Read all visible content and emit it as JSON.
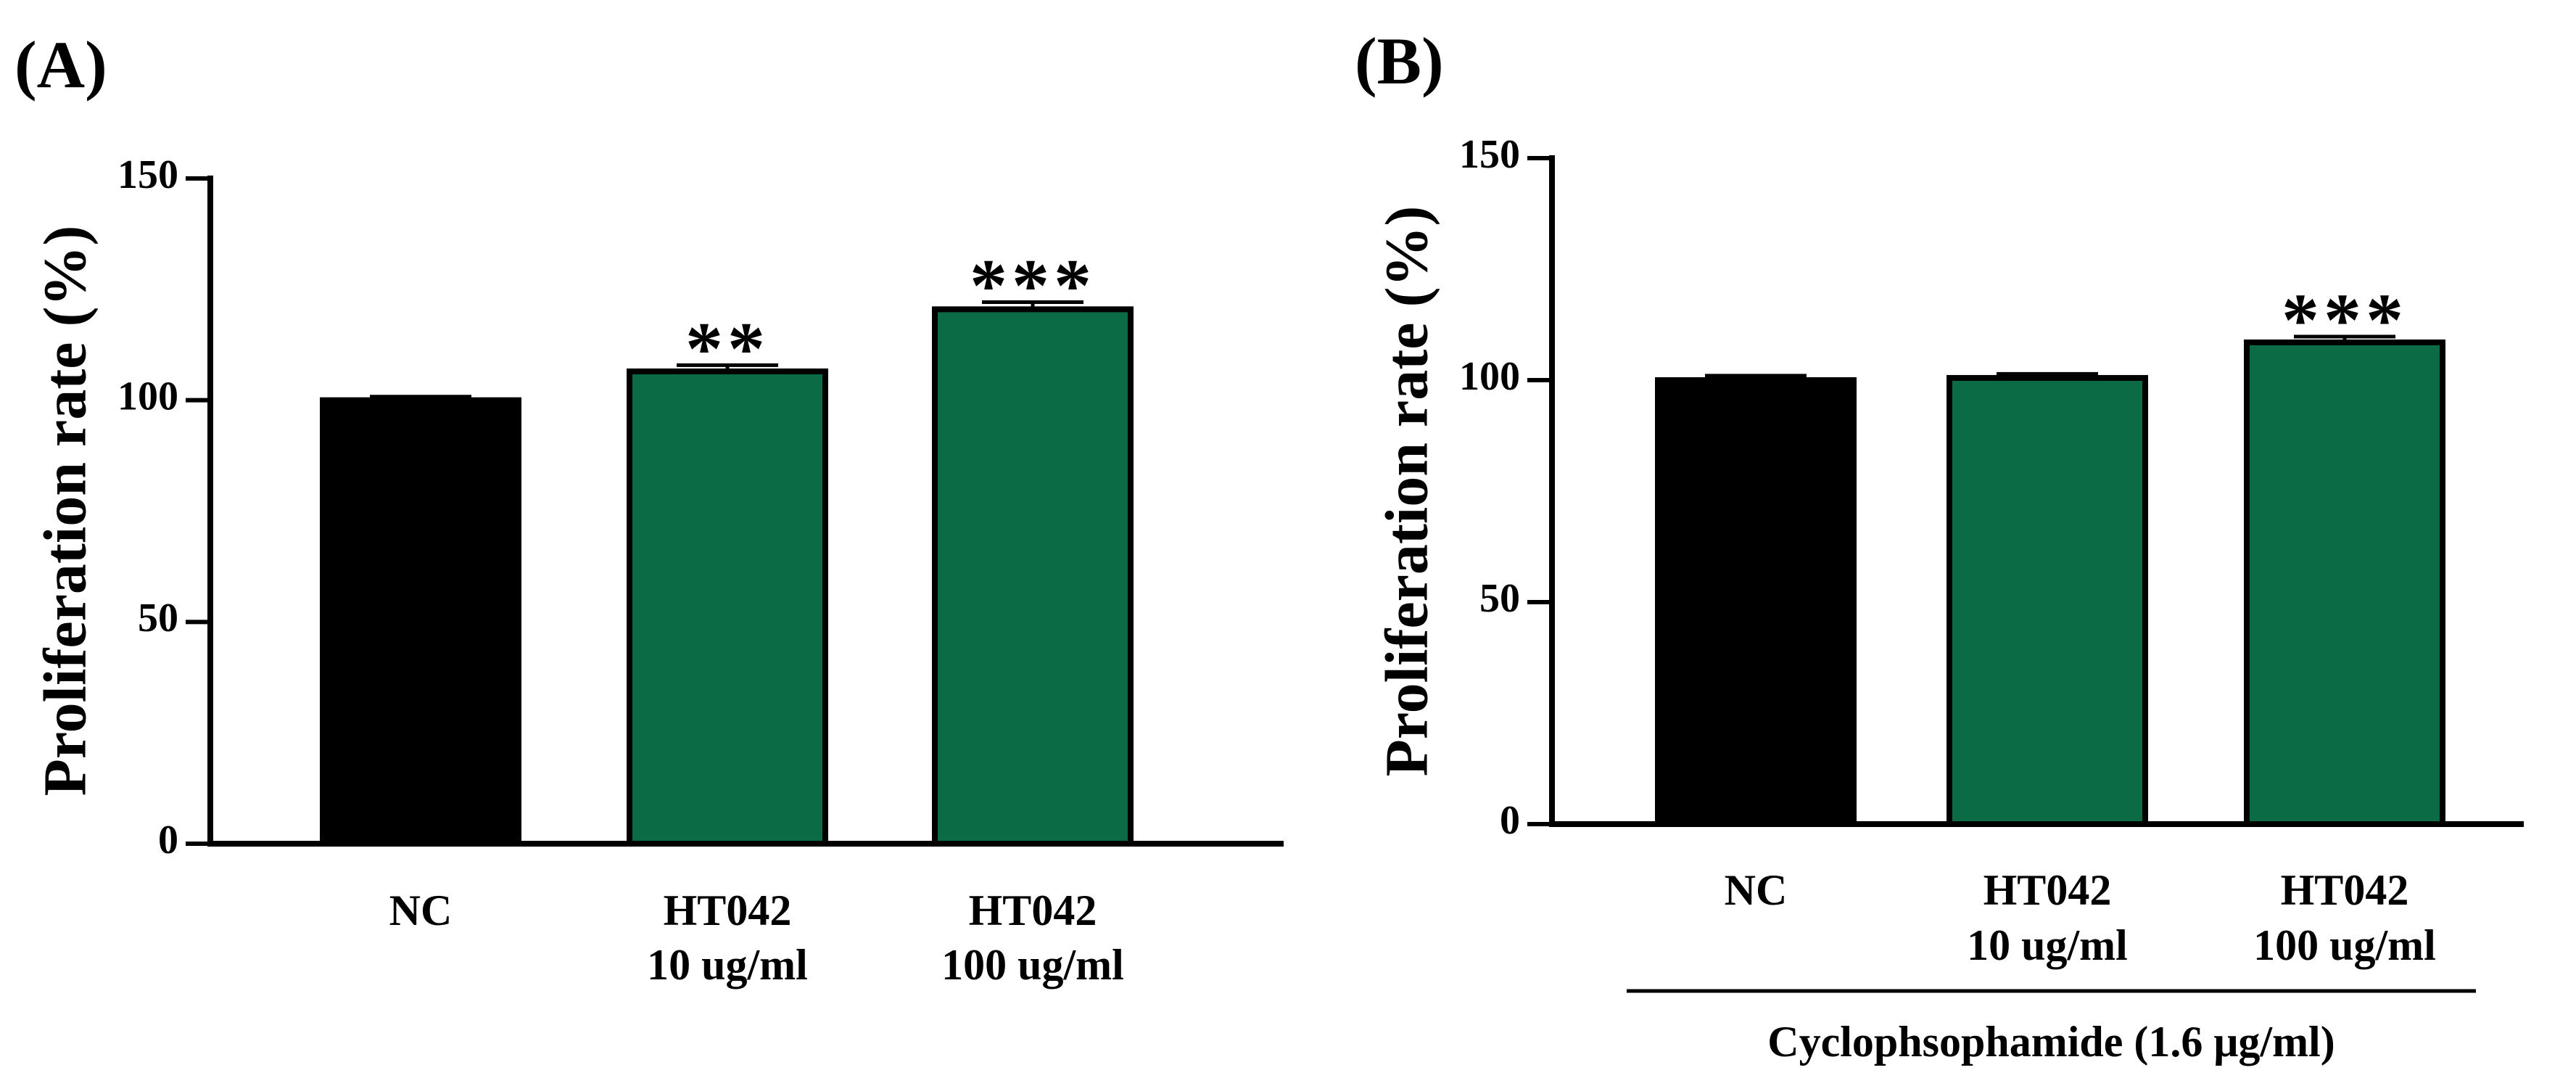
{
  "chart_data": [
    {
      "type": "bar",
      "panel_label": "(A)",
      "title": "",
      "xlabel": "",
      "ylabel": "Proliferation rate (%)",
      "ylim": [
        0,
        150
      ],
      "yticks": [
        0,
        50,
        100,
        150
      ],
      "grid": false,
      "categories": [
        [
          "NC"
        ],
        [
          "HT042",
          "10 ug/ml"
        ],
        [
          "HT042",
          "100 ug/ml"
        ]
      ],
      "values": [
        100,
        106.5,
        120.5
      ],
      "errors": [
        0.8,
        1.4,
        1.6
      ],
      "significance": [
        "",
        "**",
        "***"
      ],
      "colors": [
        "#000000",
        "#0a6b45",
        "#0a6b45"
      ],
      "group_note": ""
    },
    {
      "type": "bar",
      "panel_label": "(B)",
      "title": "",
      "xlabel": "",
      "ylabel": "Proliferation rate (%)",
      "ylim": [
        0,
        150
      ],
      "yticks": [
        0,
        50,
        100,
        150
      ],
      "grid": false,
      "categories": [
        [
          "NC"
        ],
        [
          "HT042",
          "10 ug/ml"
        ],
        [
          "HT042",
          "100 ug/ml"
        ]
      ],
      "values": [
        100,
        100.5,
        108.5
      ],
      "errors": [
        1.0,
        0.9,
        1.3
      ],
      "significance": [
        "",
        "",
        "***"
      ],
      "colors": [
        "#000000",
        "#0a6b45",
        "#0a6b45"
      ],
      "group_note": "Cyclophsophamide (1.6 μg/ml)"
    }
  ]
}
